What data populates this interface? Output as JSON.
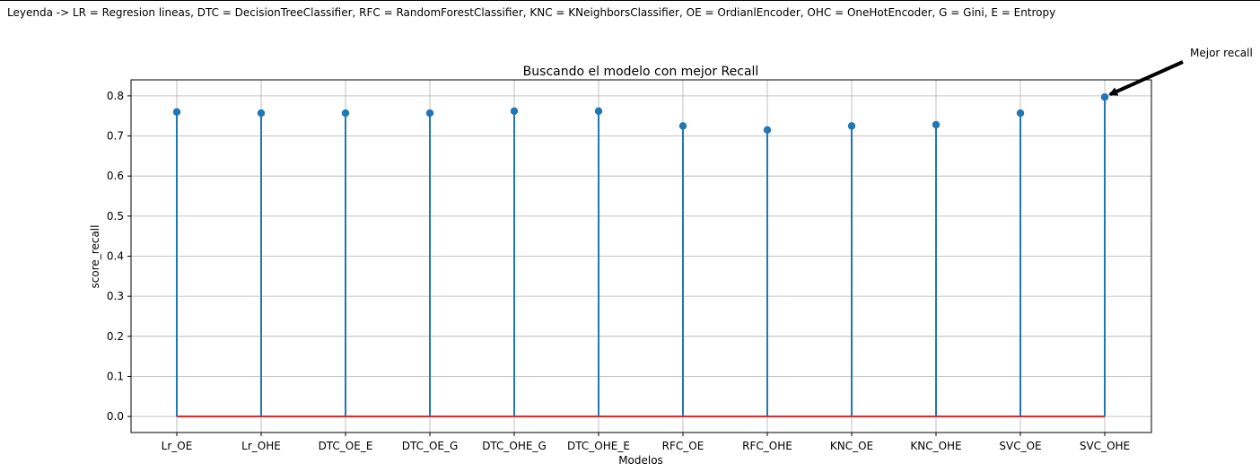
{
  "legend_note": "Leyenda -> LR = Regresion lineas, DTC = DecisionTreeClassifier, RFC = RandomForestClassifier, KNC = KNeighborsClassifier, OE = OrdianlEncoder, OHC = OneHotEncoder, G = Gini, E = Entropy",
  "chart_data": {
    "type": "stem",
    "title": "Buscando el modelo con mejor Recall",
    "xlabel": "Modelos",
    "ylabel": "score_recall",
    "categories": [
      "Lr_OE",
      "Lr_OHE",
      "DTC_OE_E",
      "DTC_OE_G",
      "DTC_OHE_G",
      "DTC_OHE_E",
      "RFC_OE",
      "RFC_OHE",
      "KNC_OE",
      "KNC_OHE",
      "SVC_OE",
      "SVC_OHE"
    ],
    "values": [
      0.76,
      0.757,
      0.757,
      0.757,
      0.762,
      0.762,
      0.725,
      0.715,
      0.725,
      0.728,
      0.757,
      0.797
    ],
    "ylim": [
      -0.04,
      0.84
    ],
    "yticks": [
      "0.0",
      "0.1",
      "0.2",
      "0.3",
      "0.4",
      "0.5",
      "0.6",
      "0.7",
      "0.8"
    ],
    "grid": true,
    "colors": {
      "stem": "#1f77b4",
      "baseline": "#d62728",
      "grid": "#b0b0b0"
    },
    "annotation": {
      "text": "Mejor recall",
      "target_category": "SVC_OHE"
    }
  }
}
